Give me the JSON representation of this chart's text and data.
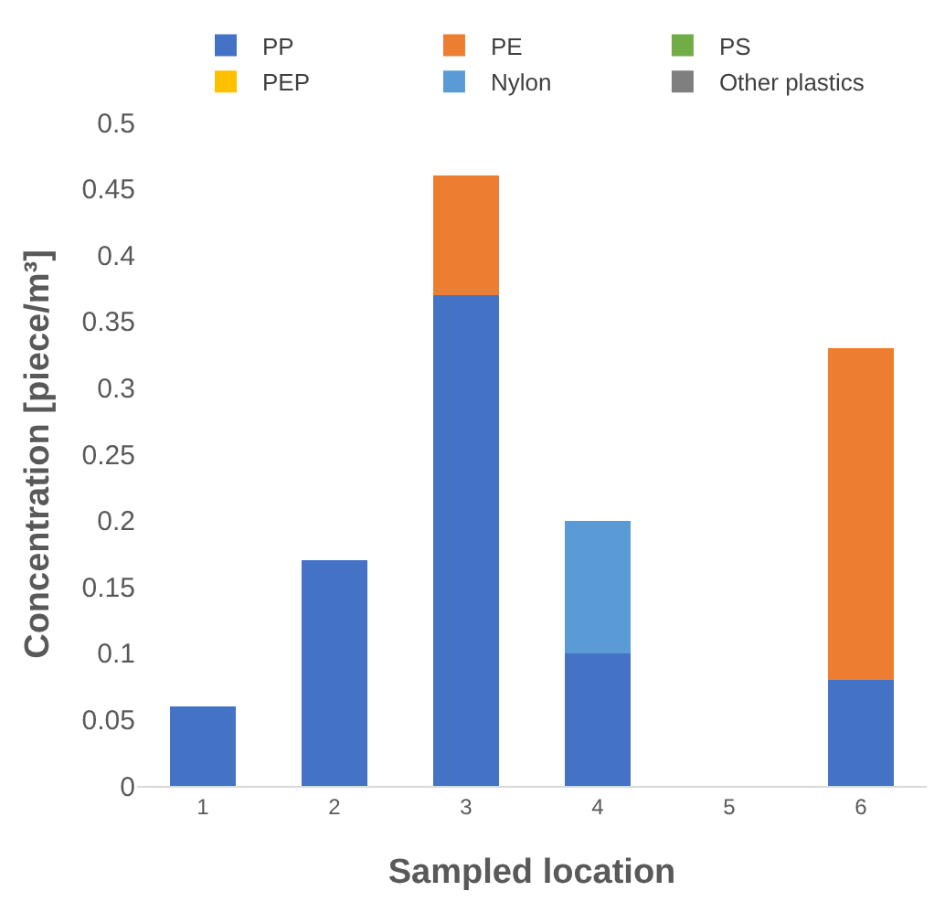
{
  "chart_data": {
    "type": "bar",
    "stacked": true,
    "xlabel": "Sampled location",
    "ylabel": "Concentration [piece/m³]",
    "categories": [
      "1",
      "2",
      "3",
      "4",
      "5",
      "6"
    ],
    "series": [
      {
        "name": "PP",
        "color": "#4472c4",
        "values": [
          0.06,
          0.17,
          0.37,
          0.1,
          null,
          0.08
        ]
      },
      {
        "name": "PE",
        "color": "#ed7d31",
        "values": [
          null,
          null,
          0.09,
          null,
          null,
          0.25
        ]
      },
      {
        "name": "PS",
        "color": "#70ad47",
        "values": [
          null,
          null,
          null,
          null,
          null,
          null
        ]
      },
      {
        "name": "PEP",
        "color": "#ffc000",
        "values": [
          null,
          null,
          null,
          null,
          null,
          null
        ]
      },
      {
        "name": "Nylon",
        "color": "#5b9bd5",
        "values": [
          null,
          null,
          null,
          0.1,
          null,
          null
        ]
      },
      {
        "name": "Other plastics",
        "color": "#7f7f7f",
        "values": [
          null,
          null,
          null,
          null,
          null,
          null
        ]
      }
    ],
    "ylim": [
      0,
      0.5
    ],
    "yticks": [
      0,
      0.05,
      0.1,
      0.15,
      0.2,
      0.25,
      0.3,
      0.35,
      0.4,
      0.45,
      0.5
    ],
    "grid": false,
    "legend": "top"
  }
}
